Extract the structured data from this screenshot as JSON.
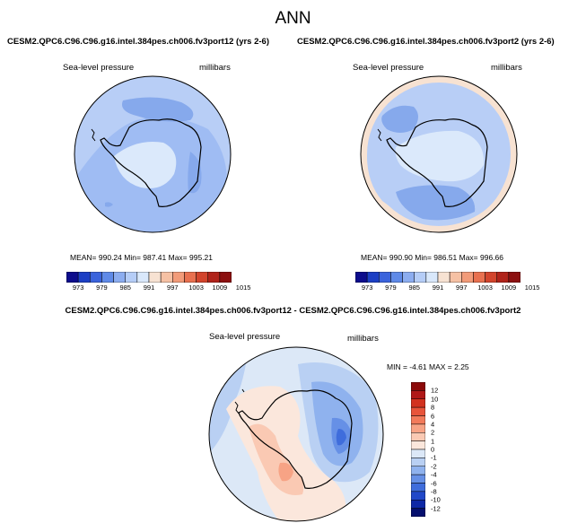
{
  "figure_title": "ANN",
  "chart_data": [
    {
      "type": "heatmap",
      "title": "CESM2.QPC6.C96.C96.g16.intel.384pes.ch006.fv3port12 (yrs 2-6)",
      "field_label": "Sea-level pressure",
      "units": "millibars",
      "stats": {
        "mean": 990.24,
        "min": 987.41,
        "max": 995.21
      },
      "stats_text": "MEAN= 990.24  Min= 987.41  Max= 995.21",
      "projection": "south-polar stereographic",
      "colorbar": {
        "orientation": "horizontal",
        "levels": [
          973,
          979,
          985,
          991,
          997,
          1003,
          1009,
          1015
        ],
        "colors": [
          "#0d0d8c",
          "#1c3fc4",
          "#3a63dc",
          "#5f8ae8",
          "#8cadf0",
          "#b5cdf7",
          "#d9e8fb",
          "#f7e2d2",
          "#f6c1a4",
          "#f29b79",
          "#e8704f",
          "#d2442c",
          "#b0231a",
          "#8c1010"
        ]
      }
    },
    {
      "type": "heatmap",
      "title": "CESM2.QPC6.C96.C96.g16.intel.384pes.ch006.fv3port2 (yrs 2-6)",
      "field_label": "Sea-level pressure",
      "units": "millibars",
      "stats": {
        "mean": 990.9,
        "min": 986.51,
        "max": 996.66
      },
      "stats_text": "MEAN= 990.90  Min= 986.51  Max= 996.66",
      "projection": "south-polar stereographic",
      "colorbar": {
        "orientation": "horizontal",
        "levels": [
          973,
          979,
          985,
          991,
          997,
          1003,
          1009,
          1015
        ],
        "colors": [
          "#0d0d8c",
          "#1c3fc4",
          "#3a63dc",
          "#5f8ae8",
          "#8cadf0",
          "#b5cdf7",
          "#d9e8fb",
          "#f7e2d2",
          "#f6c1a4",
          "#f29b79",
          "#e8704f",
          "#d2442c",
          "#b0231a",
          "#8c1010"
        ]
      }
    },
    {
      "type": "heatmap",
      "title": "CESM2.QPC6.C96.C96.g16.intel.384pes.ch006.fv3port12 - CESM2.QPC6.C96.C96.g16.intel.384pes.ch006.fv3port2",
      "field_label": "Sea-level pressure",
      "units": "millibars",
      "stats": {
        "min": -4.61,
        "max": 2.25
      },
      "stats_text": "MIN =  -4.61 MAX =   2.25",
      "projection": "south-polar stereographic",
      "colorbar": {
        "orientation": "vertical",
        "levels": [
          12,
          10,
          8,
          6,
          4,
          2,
          1,
          0,
          -1,
          -2,
          -4,
          -6,
          -8,
          -10,
          -12
        ],
        "colors": [
          "#8c0a0a",
          "#b01818",
          "#d2321f",
          "#e8543a",
          "#f27a5a",
          "#f7a385",
          "#fac9b3",
          "#fbe7dc",
          "#dce8f7",
          "#b9d0f3",
          "#8fb2ee",
          "#6690e6",
          "#3f6ddc",
          "#2148c8",
          "#0e28a6",
          "#050f6e"
        ]
      }
    }
  ]
}
